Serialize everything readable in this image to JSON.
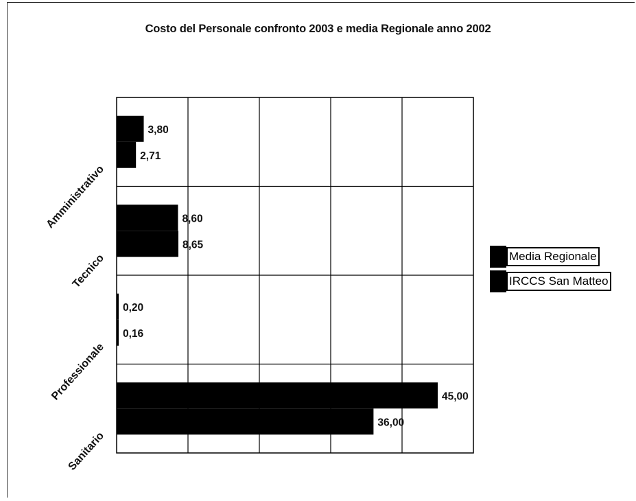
{
  "chart_data": {
    "type": "bar",
    "orientation": "horizontal",
    "title": "Costo del Personale confronto 2003 e media Regionale anno 2002",
    "categories": [
      "Amministrativo",
      "Tecnico",
      "Professionale",
      "Sanitario"
    ],
    "series": [
      {
        "name": "Media Regionale",
        "values": [
          3.8,
          8.6,
          0.2,
          45.0
        ],
        "labels": [
          "3,80",
          "8,60",
          "0,20",
          "45,00"
        ],
        "color": "#000000"
      },
      {
        "name": "IRCCS San Matteo",
        "values": [
          2.71,
          8.65,
          0.16,
          36.0
        ],
        "labels": [
          "2,71",
          "8,65",
          "0,16",
          "36,00"
        ],
        "color": "#000000"
      }
    ],
    "xlim": [
      0,
      50
    ],
    "grid": true,
    "legend_position": "right"
  }
}
